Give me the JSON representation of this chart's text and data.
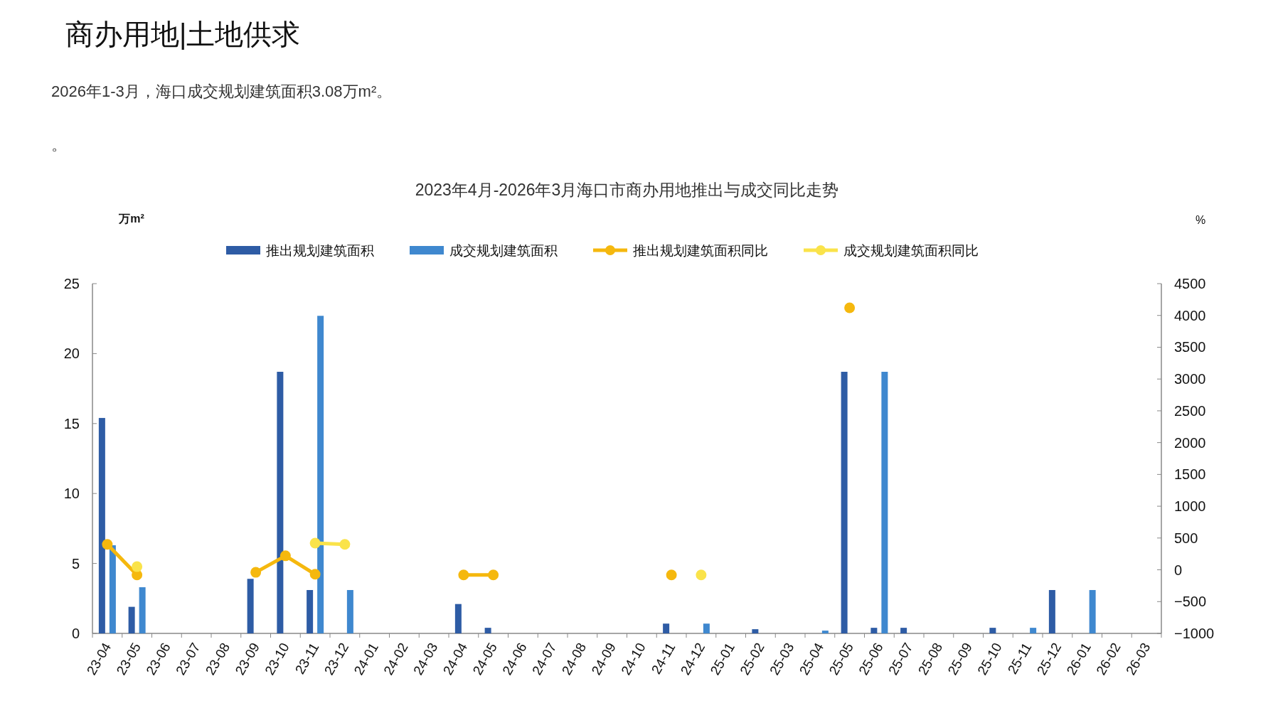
{
  "chart_data": {
    "type": "bar",
    "title": "2023年4月-2026年3月海口市商办用地推出与成交同比走势",
    "annotations": [
      "商办用地|土地供求",
      "2026年1-3月，海口成交规划建筑面积3.08万m²。",
      "。"
    ],
    "ylabel": "万m²",
    "y2label": "%",
    "categories": [
      "23-04",
      "23-05",
      "23-06",
      "23-07",
      "23-08",
      "23-09",
      "23-10",
      "23-11",
      "23-12",
      "24-01",
      "24-02",
      "24-03",
      "24-04",
      "24-05",
      "24-06",
      "24-07",
      "24-08",
      "24-09",
      "24-10",
      "24-11",
      "24-12",
      "25-01",
      "25-02",
      "25-03",
      "25-04",
      "25-05",
      "25-06",
      "25-07",
      "25-08",
      "25-09",
      "25-10",
      "25-11",
      "25-12",
      "26-01",
      "26-02",
      "26-03"
    ],
    "series": [
      {
        "name": "推出规划建筑面积",
        "color": "#2e5ca5",
        "values": [
          15.4,
          1.9,
          null,
          null,
          null,
          3.9,
          18.7,
          3.1,
          null,
          null,
          null,
          null,
          2.1,
          0.4,
          null,
          null,
          null,
          null,
          null,
          0.7,
          null,
          null,
          0.3,
          null,
          null,
          18.7,
          0.4,
          0.4,
          null,
          null,
          0.4,
          null,
          3.1,
          null,
          null,
          null
        ]
      },
      {
        "name": "成交规划建筑面积",
        "color": "#3f88cf",
        "values": [
          6.3,
          3.3,
          null,
          null,
          null,
          null,
          null,
          22.7,
          3.1,
          null,
          null,
          null,
          null,
          null,
          null,
          null,
          null,
          null,
          null,
          null,
          0.7,
          null,
          null,
          null,
          0.2,
          null,
          18.7,
          null,
          null,
          null,
          null,
          0.4,
          null,
          3.1,
          null,
          null
        ]
      },
      {
        "name": "推出规划建筑面积同比",
        "type": "line",
        "axis": "y2",
        "color": "#f5b80e",
        "values": [
          400,
          -80,
          null,
          null,
          null,
          -40,
          220,
          -70,
          null,
          null,
          null,
          null,
          -80,
          -80,
          null,
          null,
          null,
          null,
          null,
          -80,
          null,
          null,
          null,
          null,
          null,
          4120,
          null,
          null,
          null,
          null,
          null,
          null,
          null,
          null,
          null,
          null
        ]
      },
      {
        "name": "成交规划建筑面积同比",
        "type": "line",
        "axis": "y2",
        "color": "#fae34a",
        "values": [
          null,
          50,
          null,
          null,
          null,
          null,
          null,
          420,
          400,
          null,
          null,
          null,
          null,
          null,
          null,
          null,
          null,
          null,
          null,
          null,
          -80,
          null,
          null,
          null,
          null,
          null,
          null,
          null,
          null,
          null,
          null,
          null,
          null,
          null,
          null,
          null
        ]
      }
    ],
    "ylim": [
      0,
      25
    ],
    "yticks": [
      0,
      5,
      10,
      15,
      20,
      25
    ],
    "y2lim": [
      -1000,
      4500
    ],
    "y2ticks": [
      -1000,
      -500,
      0,
      500,
      1000,
      1500,
      2000,
      2500,
      3000,
      3500,
      4000,
      4500
    ],
    "legend": "top",
    "marker": "circle"
  }
}
